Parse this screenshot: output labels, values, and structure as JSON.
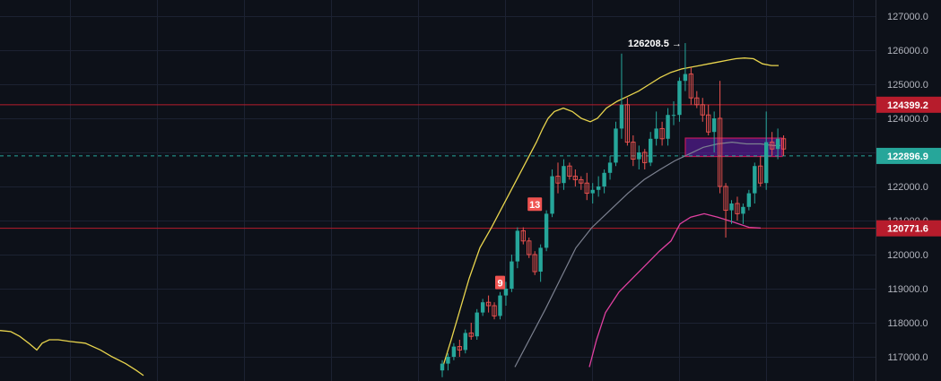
{
  "chart_data": {
    "type": "candlestick",
    "title": "",
    "colors": {
      "background": "#0d1119",
      "grid": "#1c2232",
      "up": "#26a69a",
      "down": "#ef5350",
      "upper_band": "#e8d44d",
      "middle_band": "#7c8190",
      "lower_band": "#e040a0",
      "support_resistance": "#b71c2c",
      "current_price": "#26a69a",
      "zone_fill": "#6a1fb5",
      "zone_border": "#c2185b",
      "axis_text": "#b2b5be"
    },
    "y_axis": {
      "range": [
        116650,
        127400
      ],
      "ticks": [
        "127000.0",
        "126000.0",
        "125000.0",
        "124000.0",
        "123000.0",
        "122000.0",
        "121000.0",
        "120000.0",
        "119000.0",
        "118000.0",
        "117000.0"
      ],
      "tick_values": [
        127000,
        126000,
        125000,
        124000,
        123000,
        122000,
        121000,
        120000,
        119000,
        118000,
        117000
      ],
      "position": "right"
    },
    "x_grid_count": 10,
    "candles": [
      [
        116600,
        116900,
        116400,
        116800
      ],
      [
        116800,
        117100,
        116600,
        117000
      ],
      [
        117000,
        117400,
        116900,
        117300
      ],
      [
        117300,
        117500,
        117000,
        117200
      ],
      [
        117200,
        117800,
        117100,
        117700
      ],
      [
        117700,
        118000,
        117500,
        117600
      ],
      [
        117600,
        118400,
        117500,
        118300
      ],
      [
        118300,
        118700,
        118200,
        118600
      ],
      [
        118600,
        118800,
        118300,
        118500
      ],
      [
        118500,
        118600,
        118100,
        118200
      ],
      [
        118200,
        118900,
        118100,
        118800
      ],
      [
        118800,
        119200,
        118500,
        119000
      ],
      [
        119000,
        120000,
        118900,
        119800
      ],
      [
        119800,
        120800,
        119600,
        120700
      ],
      [
        120700,
        120800,
        120300,
        120400
      ],
      [
        120400,
        120500,
        119900,
        120000
      ],
      [
        120000,
        120100,
        119400,
        119500
      ],
      [
        119500,
        120300,
        119200,
        120200
      ],
      [
        120200,
        121300,
        120100,
        121200
      ],
      [
        121200,
        122500,
        121100,
        122300
      ],
      [
        122300,
        122700,
        121800,
        122100
      ],
      [
        122100,
        122800,
        121900,
        122600
      ],
      [
        122600,
        122700,
        122200,
        122300
      ],
      [
        122300,
        122500,
        122000,
        122200
      ],
      [
        122200,
        122300,
        121900,
        122100
      ],
      [
        122100,
        122400,
        121600,
        121800
      ],
      [
        121800,
        122100,
        121500,
        121900
      ],
      [
        121900,
        122300,
        121700,
        122000
      ],
      [
        122000,
        122500,
        121800,
        122400
      ],
      [
        122400,
        122900,
        122200,
        122700
      ],
      [
        122700,
        123900,
        122600,
        123700
      ],
      [
        123700,
        125900,
        123400,
        124400
      ],
      [
        124400,
        124600,
        123200,
        123300
      ],
      [
        123300,
        123500,
        122600,
        122800
      ],
      [
        122800,
        123200,
        122500,
        123000
      ],
      [
        123000,
        123100,
        122500,
        122700
      ],
      [
        122700,
        123600,
        122600,
        123400
      ],
      [
        123400,
        124200,
        123200,
        123700
      ],
      [
        123700,
        123900,
        123200,
        123400
      ],
      [
        123400,
        124300,
        123200,
        124100
      ],
      [
        124100,
        124500,
        123800,
        124100
      ],
      [
        124100,
        125200,
        123900,
        125100
      ],
      [
        125100,
        126208.5,
        124800,
        125300
      ],
      [
        125300,
        125500,
        124400,
        124600
      ],
      [
        124600,
        124800,
        124300,
        124400
      ],
      [
        124400,
        124600,
        123900,
        124100
      ],
      [
        124100,
        124400,
        123500,
        123600
      ],
      [
        123600,
        124200,
        123000,
        124000
      ],
      [
        124000,
        125100,
        121800,
        122000
      ],
      [
        122000,
        122100,
        120500,
        121300
      ],
      [
        121300,
        121600,
        120900,
        121500
      ],
      [
        121500,
        121700,
        121000,
        121200
      ],
      [
        121200,
        121500,
        120900,
        121400
      ],
      [
        121400,
        121900,
        121300,
        121800
      ],
      [
        121800,
        122700,
        121500,
        122600
      ],
      [
        122600,
        122900,
        122000,
        122100
      ],
      [
        122100,
        124200,
        121900,
        123300
      ],
      [
        123300,
        123600,
        122900,
        123100
      ],
      [
        123100,
        123700,
        122800,
        123400
      ],
      [
        123400,
        123500,
        122900,
        123100
      ]
    ],
    "upper_band": [
      [
        122700,
        120400
      ],
      [
        122900,
        120800
      ],
      [
        123100,
        121100
      ],
      [
        123300,
        121300
      ],
      [
        123500,
        122000
      ],
      [
        123800,
        122800
      ],
      [
        124100,
        123500
      ],
      [
        124400,
        123700
      ],
      [
        124800,
        124000
      ],
      [
        125100,
        124200
      ],
      [
        125600,
        124600
      ],
      [
        125800,
        124900
      ],
      [
        126050,
        125200
      ],
      [
        126150,
        125350
      ],
      [
        126000,
        125700
      ],
      [
        125800,
        125900
      ],
      [
        125500,
        125700
      ],
      [
        124800,
        125600
      ],
      [
        124100,
        125500
      ],
      [
        123600,
        125300
      ],
      [
        123300,
        125100
      ],
      [
        123400,
        124900
      ],
      [
        123600,
        124600
      ],
      [
        123800,
        124300
      ],
      [
        124400,
        124350
      ],
      [
        124600,
        124500
      ],
      [
        124900,
        124650
      ],
      [
        125200,
        124700
      ],
      [
        125350,
        124700
      ],
      [
        125500,
        124650
      ],
      [
        125700,
        124700
      ],
      [
        125900,
        124900
      ],
      [
        126100,
        125100
      ],
      [
        126200,
        125300
      ],
      [
        126300,
        125400
      ],
      [
        126400,
        125550
      ],
      [
        126500,
        125650
      ],
      [
        126600,
        125700
      ],
      [
        126700,
        125760
      ],
      [
        126800,
        125780
      ],
      [
        127000,
        125800
      ],
      [
        127300,
        125800
      ],
      [
        127500,
        125750
      ],
      [
        127800,
        125700
      ],
      [
        128000,
        125700
      ],
      [
        128200,
        125750
      ],
      [
        128400,
        125740
      ],
      [
        128600,
        125700
      ],
      [
        128800,
        125650
      ],
      [
        129000,
        125600
      ],
      [
        129200,
        125550
      ],
      [
        129400,
        125550
      ]
    ],
    "middle_band": [
      [
        129400,
        116700
      ],
      [
        128200,
        117500
      ],
      [
        127100,
        118400
      ],
      [
        126000,
        119300
      ],
      [
        125000,
        120200
      ],
      [
        124000,
        120800
      ],
      [
        123000,
        121300
      ],
      [
        122000,
        121800
      ],
      [
        121000,
        122200
      ],
      [
        120000,
        122500
      ],
      [
        118800,
        122750
      ],
      [
        118100,
        122950
      ],
      [
        117300,
        123150
      ],
      [
        116600,
        123250
      ],
      [
        116200,
        123300
      ],
      [
        116000,
        123250
      ],
      [
        115900,
        123250
      ],
      [
        115800,
        123200
      ],
      [
        115700,
        123200
      ]
    ],
    "lower_band": [
      [
        111400,
        116700
      ],
      [
        112000,
        117500
      ],
      [
        113000,
        118300
      ],
      [
        114000,
        119200
      ],
      [
        115000,
        119700
      ],
      [
        115800,
        120300
      ],
      [
        116600,
        120800
      ],
      [
        117400,
        121100
      ],
      [
        118000,
        121300
      ],
      [
        118600,
        121200
      ],
      [
        119000,
        121100
      ],
      [
        119500,
        121000
      ],
      [
        120000,
        120800
      ],
      [
        120400,
        120800
      ]
    ],
    "middle_x_start": 115700,
    "lower_x_start": 111400,
    "x_scale": "custom",
    "horizontal_levels": [
      {
        "name": "resistance",
        "value": 124399.2,
        "label": "124399.2",
        "style": "solid"
      },
      {
        "name": "support",
        "value": 120771.6,
        "label": "120771.6",
        "style": "solid"
      },
      {
        "name": "current",
        "value": 122896.9,
        "label": "122896.9",
        "style": "dashed"
      }
    ],
    "zone": {
      "from": 122880,
      "to": 123420
    },
    "peak_annotation": {
      "label": "126208.5 →",
      "value": 126208.5,
      "candle_index": 42
    },
    "sequence_markers": [
      {
        "label": "9",
        "value": 118800,
        "candle_index": 10
      },
      {
        "label": "13",
        "value": 121100,
        "candle_index": 16
      }
    ]
  }
}
